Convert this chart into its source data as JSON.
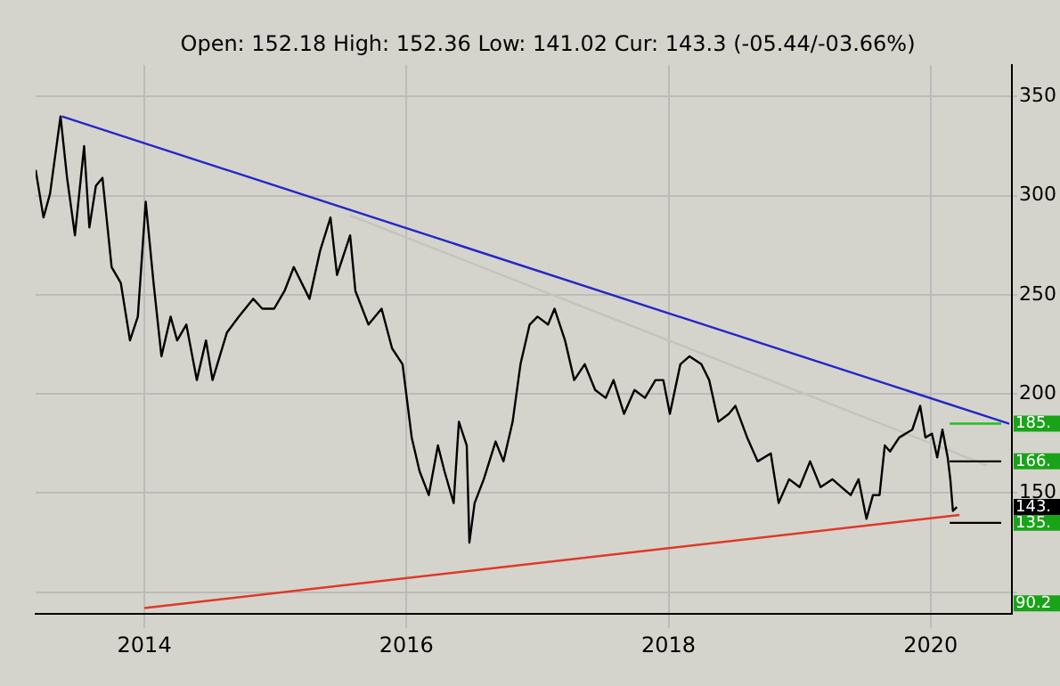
{
  "chart_data": {
    "type": "line",
    "subtitle": "Open: 152.18 High: 152.36 Low: 141.02 Cur: 143.3 (-05.44/-03.66%)",
    "xlim": [
      2013.17,
      2020.62
    ],
    "xticks": [
      2014,
      2016,
      2018,
      2020
    ],
    "ylim": [
      89,
      366
    ],
    "yticks": [
      {
        "value": 100,
        "label": null
      },
      150,
      200,
      250,
      300,
      350
    ],
    "grid": true,
    "legend": false,
    "marker": "none",
    "line_style": "solid",
    "series": [
      {
        "color": "#000000",
        "x": [
          2013.17,
          2013.23,
          2013.28,
          2013.36,
          2013.41,
          2013.47,
          2013.54,
          2013.58,
          2013.63,
          2013.68,
          2013.75,
          2013.82,
          2013.89,
          2013.95,
          2014.01,
          2014.07,
          2014.13,
          2014.2,
          2014.25,
          2014.32,
          2014.4,
          2014.47,
          2014.52,
          2014.63,
          2014.72,
          2014.83,
          2014.9,
          2014.99,
          2015.07,
          2015.14,
          2015.26,
          2015.34,
          2015.42,
          2015.47,
          2015.57,
          2015.61,
          2015.71,
          2015.81,
          2015.89,
          2015.97,
          2016.04,
          2016.1,
          2016.17,
          2016.24,
          2016.29,
          2016.36,
          2016.4,
          2016.46,
          2016.48,
          2016.52,
          2016.59,
          2016.68,
          2016.74,
          2016.81,
          2016.87,
          2016.94,
          2017.0,
          2017.08,
          2017.13,
          2017.21,
          2017.28,
          2017.36,
          2017.44,
          2017.52,
          2017.58,
          2017.66,
          2017.74,
          2017.82,
          2017.9,
          2017.96,
          2018.01,
          2018.09,
          2018.16,
          2018.25,
          2018.31,
          2018.38,
          2018.46,
          2018.51,
          2018.6,
          2018.68,
          2018.78,
          2018.84,
          2018.92,
          2019.0,
          2019.08,
          2019.16,
          2019.25,
          2019.32,
          2019.39,
          2019.45,
          2019.51,
          2019.56,
          2019.61,
          2019.65,
          2019.69,
          2019.76,
          2019.86,
          2019.92,
          2019.96,
          2020.01,
          2020.05,
          2020.09,
          2020.13,
          2020.15,
          2020.17,
          2020.2
        ],
        "values": [
          313,
          289,
          301,
          340,
          309,
          280,
          325,
          284,
          305,
          309,
          264,
          256,
          227,
          239,
          297,
          256,
          219,
          239,
          227,
          235,
          207,
          227,
          207,
          231,
          239,
          248,
          243,
          243,
          252,
          264,
          248,
          272,
          289,
          260,
          280,
          252,
          235,
          243,
          223,
          215,
          178,
          161,
          149,
          174,
          161,
          145,
          186,
          174,
          125,
          145,
          157,
          176,
          166,
          186,
          215,
          235,
          239,
          235,
          243,
          227,
          207,
          215,
          202,
          198,
          207,
          190,
          202,
          198,
          207,
          207,
          190,
          215,
          219,
          215,
          207,
          186,
          190,
          194,
          178,
          166,
          170,
          145,
          157,
          153,
          166,
          153,
          157,
          153,
          149,
          157,
          137,
          149,
          149,
          174,
          171,
          178,
          182,
          194,
          178,
          180,
          168,
          182,
          168,
          157,
          141,
          143
        ]
      },
      {
        "color": "#2626c8",
        "x": [
          2013.37,
          2020.6
        ],
        "values": [
          340,
          185
        ]
      },
      {
        "color": "#c4c4bc",
        "x": [
          2015.57,
          2020.43
        ],
        "values": [
          290,
          164
        ]
      },
      {
        "color": "#e03828",
        "x": [
          2014.0,
          2020.22
        ],
        "values": [
          92,
          139
        ]
      }
    ],
    "ref_lines": [
      {
        "axis": "y",
        "value": 185,
        "label": "185.",
        "color": "#22c022"
      },
      {
        "axis": "y",
        "value": 166,
        "label": "166.",
        "color": "#000000"
      },
      {
        "axis": "y",
        "value": 135,
        "label": "135.",
        "color": "#000000"
      }
    ],
    "annotations": [
      "143.",
      "90.2"
    ]
  }
}
